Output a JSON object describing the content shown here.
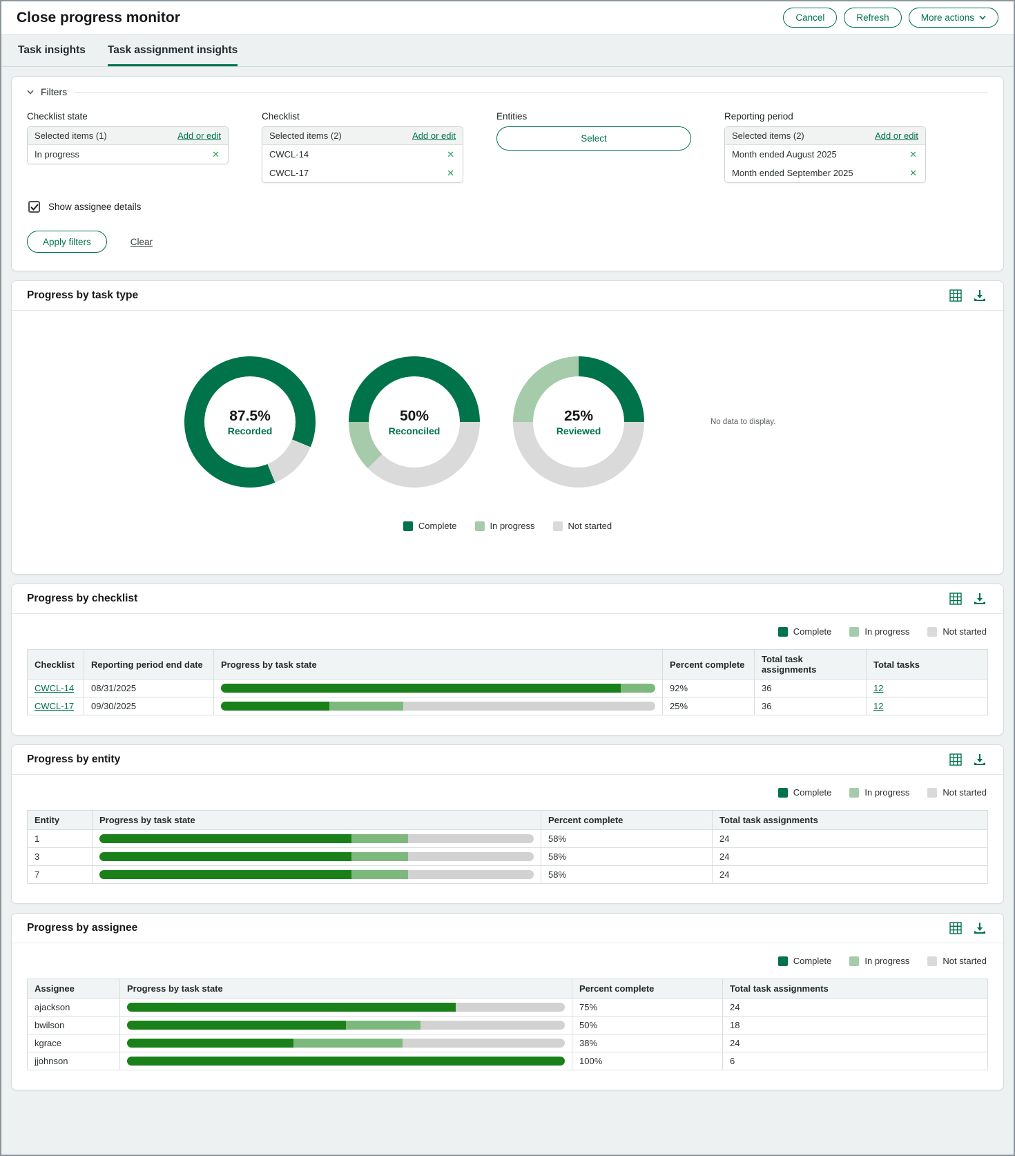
{
  "header": {
    "title": "Close progress monitor",
    "buttons": {
      "cancel": "Cancel",
      "refresh": "Refresh",
      "more_actions": "More actions"
    }
  },
  "tabs": [
    {
      "label": "Task insights",
      "active": false
    },
    {
      "label": "Task assignment insights",
      "active": true
    }
  ],
  "filters": {
    "section_label": "Filters",
    "groups": [
      {
        "label": "Checklist state",
        "header": "Selected items (1)",
        "action": "Add or edit",
        "items": [
          "In progress"
        ]
      },
      {
        "label": "Checklist",
        "header": "Selected items (2)",
        "action": "Add or edit",
        "items": [
          "CWCL-14",
          "CWCL-17"
        ]
      },
      {
        "label": "Entities",
        "button_label": "Select"
      },
      {
        "label": "Reporting period",
        "header": "Selected items (2)",
        "action": "Add or edit",
        "items": [
          "Month ended August 2025",
          "Month ended September 2025"
        ]
      }
    ],
    "checkbox_label": "Show assignee details",
    "checkbox_checked": true,
    "apply_label": "Apply filters",
    "clear_label": "Clear"
  },
  "colors": {
    "accent": "#00734B",
    "complete": "#00734B",
    "in_progress": "#A6CBAA",
    "not_started": "#DADADA",
    "bar_complete": "#1A801A",
    "bar_in_progress": "#7DB97D",
    "bar_not_started": "#D2D2D2"
  },
  "legend_labels": [
    "Complete",
    "In progress",
    "Not started"
  ],
  "task_type_panel": {
    "title": "Progress by task type",
    "no_data": "No data to display.",
    "donuts": [
      {
        "value": "87.5%",
        "label": "Recorded",
        "segments": [
          [
            "complete",
            0,
            112.5
          ],
          [
            "not_started",
            112.5,
            157.5
          ],
          [
            "complete",
            157.5,
            360
          ]
        ]
      },
      {
        "value": "50%",
        "label": "Reconciled",
        "segments": [
          [
            "complete",
            0,
            90
          ],
          [
            "not_started",
            90,
            225
          ],
          [
            "in_progress",
            225,
            270
          ],
          [
            "complete",
            270,
            360
          ]
        ]
      },
      {
        "value": "25%",
        "label": "Reviewed",
        "segments": [
          [
            "complete",
            0,
            90
          ],
          [
            "not_started",
            90,
            270
          ],
          [
            "in_progress",
            270,
            360
          ]
        ]
      }
    ]
  },
  "chart_data": [
    {
      "type": "pie",
      "title": "Recorded",
      "center_label": "87.5%",
      "series": [
        {
          "name": "Complete",
          "value": 87.5
        },
        {
          "name": "In progress",
          "value": 0
        },
        {
          "name": "Not started",
          "value": 12.5
        }
      ]
    },
    {
      "type": "pie",
      "title": "Reconciled",
      "center_label": "50%",
      "series": [
        {
          "name": "Complete",
          "value": 50
        },
        {
          "name": "In progress",
          "value": 12.5
        },
        {
          "name": "Not started",
          "value": 37.5
        }
      ]
    },
    {
      "type": "pie",
      "title": "Reviewed",
      "center_label": "25%",
      "series": [
        {
          "name": "Complete",
          "value": 25
        },
        {
          "name": "In progress",
          "value": 25
        },
        {
          "name": "Not started",
          "value": 50
        }
      ]
    }
  ],
  "checklist_panel": {
    "title": "Progress by checklist",
    "columns": [
      "Checklist",
      "Reporting period end date",
      "Progress by task state",
      "Percent complete",
      "Total task assignments",
      "Total tasks"
    ],
    "rows": [
      {
        "checklist": "CWCL-14",
        "end_date": "08/31/2025",
        "bar": {
          "complete": 92,
          "in_progress": 8
        },
        "percent": "92%",
        "assignments": "36",
        "total_tasks": "12"
      },
      {
        "checklist": "CWCL-17",
        "end_date": "09/30/2025",
        "bar": {
          "complete": 25,
          "in_progress": 17
        },
        "percent": "25%",
        "assignments": "36",
        "total_tasks": "12"
      }
    ]
  },
  "entity_panel": {
    "title": "Progress by entity",
    "columns": [
      "Entity",
      "Progress by task state",
      "Percent complete",
      "Total task assignments"
    ],
    "rows": [
      {
        "entity": "1",
        "bar": {
          "complete": 58,
          "in_progress": 13
        },
        "percent": "58%",
        "assignments": "24"
      },
      {
        "entity": "3",
        "bar": {
          "complete": 58,
          "in_progress": 13
        },
        "percent": "58%",
        "assignments": "24"
      },
      {
        "entity": "7",
        "bar": {
          "complete": 58,
          "in_progress": 13
        },
        "percent": "58%",
        "assignments": "24"
      }
    ]
  },
  "assignee_panel": {
    "title": "Progress by assignee",
    "columns": [
      "Assignee",
      "Progress by task state",
      "Percent complete",
      "Total task assignments"
    ],
    "rows": [
      {
        "assignee": "ajackson",
        "bar": {
          "complete": 75,
          "in_progress": 0
        },
        "percent": "75%",
        "assignments": "24"
      },
      {
        "assignee": "bwilson",
        "bar": {
          "complete": 50,
          "in_progress": 17
        },
        "percent": "50%",
        "assignments": "18"
      },
      {
        "assignee": "kgrace",
        "bar": {
          "complete": 38,
          "in_progress": 25
        },
        "percent": "38%",
        "assignments": "24"
      },
      {
        "assignee": "jjohnson",
        "bar": {
          "complete": 100,
          "in_progress": 0
        },
        "percent": "100%",
        "assignments": "6"
      }
    ]
  }
}
